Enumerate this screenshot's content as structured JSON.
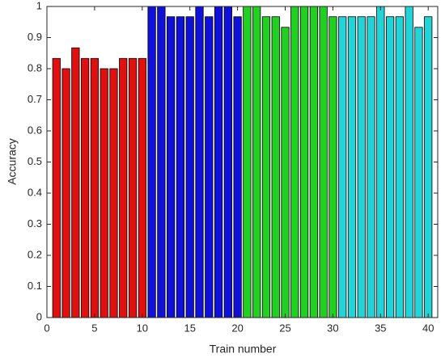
{
  "chart_data": {
    "type": "bar",
    "xlabel": "Train number",
    "ylabel": "Accuracy",
    "xlim": [
      0,
      41
    ],
    "xticks": [
      0,
      5,
      10,
      15,
      20,
      25,
      30,
      35,
      40
    ],
    "ylim": [
      0,
      1
    ],
    "yticks": [
      0,
      0.1,
      0.2,
      0.3,
      0.4,
      0.5,
      0.6,
      0.7,
      0.8,
      0.9,
      1
    ],
    "series": [
      {
        "color": "#e01010",
        "x": [
          1,
          2,
          3,
          4,
          5,
          6,
          7,
          8,
          9,
          10
        ],
        "values": [
          0.833,
          0.8,
          0.867,
          0.833,
          0.833,
          0.8,
          0.8,
          0.833,
          0.833,
          0.833
        ]
      },
      {
        "color": "#1010d8",
        "x": [
          11,
          12,
          13,
          14,
          15,
          16,
          17,
          18,
          19,
          20
        ],
        "values": [
          1,
          1,
          0.967,
          0.967,
          0.967,
          1,
          0.967,
          1,
          1,
          0.967
        ]
      },
      {
        "color": "#22d022",
        "x": [
          21,
          22,
          23,
          24,
          25,
          26,
          27,
          28,
          29,
          30
        ],
        "values": [
          1,
          1,
          0.967,
          0.967,
          0.933,
          1,
          1,
          1,
          1,
          0.967
        ]
      },
      {
        "color": "#22d4d8",
        "x": [
          31,
          32,
          33,
          34,
          35,
          36,
          37,
          38,
          39,
          40
        ],
        "values": [
          0.967,
          0.967,
          0.967,
          0.967,
          1,
          0.967,
          0.967,
          1,
          0.933,
          0.967
        ]
      }
    ]
  }
}
